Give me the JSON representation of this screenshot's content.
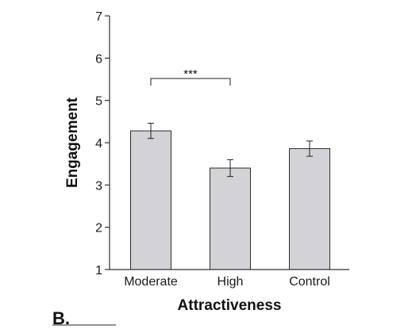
{
  "panel_label": "B.",
  "chart_data": {
    "type": "bar",
    "categories": [
      "Moderate",
      "High",
      "Control"
    ],
    "values": [
      4.28,
      3.4,
      3.86
    ],
    "error": [
      0.18,
      0.2,
      0.18
    ],
    "xlabel": "Attractiveness",
    "ylabel": "Engagement",
    "ylim": [
      1,
      7
    ],
    "yticks": [
      1,
      2,
      3,
      4,
      5,
      6,
      7
    ],
    "grid": false,
    "legend": "none",
    "bar_color": "#d3d2d6",
    "bar_edge_color": "#2b2b2b",
    "significance": [
      {
        "between": [
          "Moderate",
          "High"
        ],
        "label": "***"
      }
    ]
  }
}
